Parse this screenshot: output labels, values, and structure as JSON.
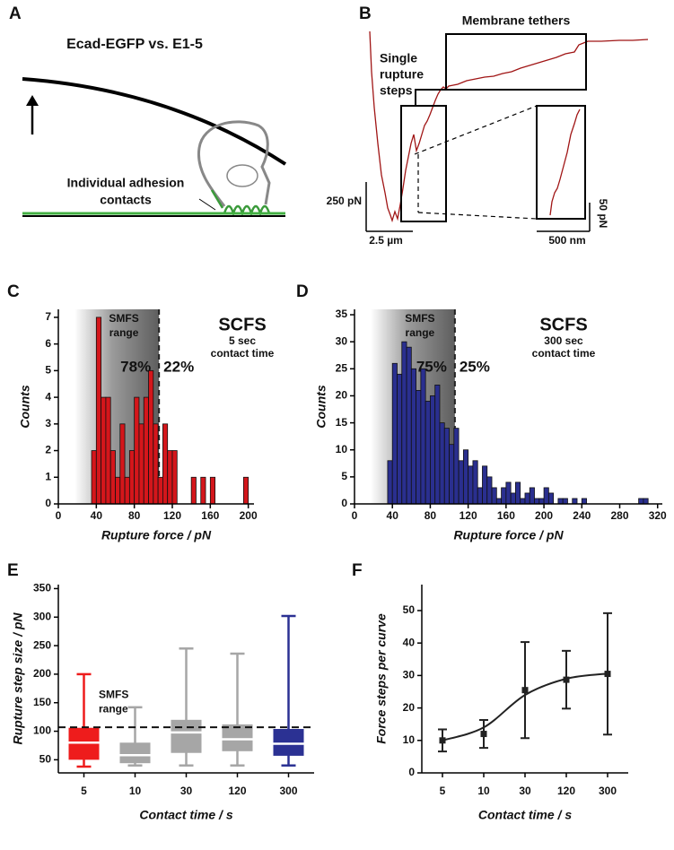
{
  "figure": {
    "panel_a": {
      "label": "A",
      "title": "Ecad-EGFP vs. E1-5",
      "annotation": [
        "Individual adhesion",
        "contacts"
      ]
    },
    "panel_b": {
      "label": "B",
      "tethers": "Membrane tethers",
      "steps": [
        "Single",
        "rupture",
        "steps"
      ],
      "scale_bars": [
        "250 pN",
        "2.5 µm",
        "50 pN",
        "500 nm"
      ]
    }
  },
  "chart_data": [
    {
      "type": "histogram",
      "label": "C",
      "title": "SCFS",
      "subtitle": [
        "5 sec",
        "contact time"
      ],
      "shade_label": [
        "SMFS",
        "range"
      ],
      "shade_range": [
        17,
        106
      ],
      "percent_labels": [
        "78%",
        "22%"
      ],
      "bins": [
        35,
        40,
        45,
        50,
        55,
        60,
        65,
        70,
        75,
        80,
        85,
        90,
        95,
        100,
        105,
        110,
        115,
        120,
        125,
        130,
        135,
        140,
        145,
        150,
        155,
        160,
        165,
        170,
        175,
        180,
        185,
        190,
        195,
        200
      ],
      "values": [
        2,
        7,
        4,
        4,
        2,
        1,
        3,
        1,
        2,
        4,
        3,
        4,
        5,
        3,
        1,
        3,
        2,
        2,
        0,
        0,
        0,
        1,
        0,
        1,
        0,
        1,
        0,
        0,
        0,
        0,
        0,
        0,
        1
      ],
      "color": "#d4161b",
      "xlim": [
        0,
        206
      ],
      "xticks": [
        0,
        40,
        80,
        120,
        160,
        200
      ],
      "ylim": [
        0,
        7.3
      ],
      "yticks": [
        0,
        1,
        2,
        3,
        4,
        5,
        6,
        7
      ],
      "xlabel": "Rupture force / pN",
      "ylabel": "Counts"
    },
    {
      "type": "histogram",
      "label": "D",
      "title": "SCFS",
      "subtitle": [
        "300 sec",
        "contact time"
      ],
      "shade_label": [
        "SMFS",
        "range"
      ],
      "shade_range": [
        17,
        106
      ],
      "percent_labels": [
        "75%",
        "25%"
      ],
      "bins": [
        35,
        40,
        45,
        50,
        55,
        60,
        65,
        70,
        75,
        80,
        85,
        90,
        95,
        100,
        105,
        110,
        115,
        120,
        125,
        130,
        135,
        140,
        145,
        150,
        155,
        160,
        165,
        170,
        175,
        180,
        185,
        190,
        195,
        200,
        205,
        210,
        215,
        220,
        225,
        230,
        235,
        240,
        245,
        250,
        255,
        260,
        265,
        270,
        275,
        280,
        285,
        290,
        295,
        300,
        305,
        310
      ],
      "values": [
        8,
        26,
        24,
        30,
        29,
        25,
        21,
        25,
        19,
        20,
        22,
        15,
        14,
        11,
        14,
        8,
        10,
        7,
        8,
        3,
        7,
        5,
        3,
        1,
        3,
        4,
        2,
        4,
        1,
        2,
        3,
        1,
        1,
        3,
        2,
        0,
        1,
        1,
        0,
        1,
        0,
        1,
        0,
        0,
        0,
        0,
        0,
        0,
        0,
        0,
        0,
        0,
        0,
        1,
        1
      ],
      "color": "#2a2f8f",
      "xlim": [
        0,
        325
      ],
      "xticks": [
        0,
        40,
        80,
        120,
        160,
        200,
        240,
        280,
        320
      ],
      "ylim": [
        0,
        36
      ],
      "yticks": [
        0,
        5,
        10,
        15,
        20,
        25,
        30,
        35
      ],
      "xlabel": "Rupture force / pN",
      "ylabel": "Counts"
    },
    {
      "type": "box",
      "label": "E",
      "categories": [
        "5",
        "10",
        "30",
        "120",
        "300"
      ],
      "boxes": [
        {
          "color": "#ee1c1c",
          "min": 38,
          "q1": 50,
          "median": 80,
          "q3": 106,
          "max": 200
        },
        {
          "color": "#a6a6a6",
          "min": 40,
          "q1": 44,
          "median": 58,
          "q3": 80,
          "max": 142
        },
        {
          "color": "#a6a6a6",
          "min": 40,
          "q1": 62,
          "median": 98,
          "q3": 120,
          "max": 245
        },
        {
          "color": "#a6a6a6",
          "min": 40,
          "q1": 65,
          "median": 86,
          "q3": 112,
          "max": 236
        },
        {
          "color": "#2b3193",
          "min": 40,
          "q1": 57,
          "median": 78,
          "q3": 104,
          "max": 302
        }
      ],
      "threshold": 107,
      "threshold_label": [
        "SMFS",
        "range"
      ],
      "ylim": [
        27,
        357
      ],
      "yticks": [
        50,
        100,
        150,
        200,
        250,
        300,
        350
      ],
      "xlabel": "Contact time / s",
      "ylabel": "Rupture step size / pN"
    },
    {
      "type": "errorbar",
      "label": "F",
      "categories": [
        "5",
        "10",
        "30",
        "120",
        "300"
      ],
      "values": [
        10,
        12,
        25.5,
        28.7,
        30.5
      ],
      "errors": [
        3.4,
        4.3,
        14.8,
        8.9,
        18.7
      ],
      "fit_values": [
        10,
        14,
        24,
        29,
        30.6
      ],
      "color": "#222222",
      "ylim": [
        0,
        58
      ],
      "yticks": [
        0,
        10,
        20,
        30,
        40,
        50
      ],
      "xlabel": "Contact time / s",
      "ylabel": "Force steps per curve"
    }
  ]
}
